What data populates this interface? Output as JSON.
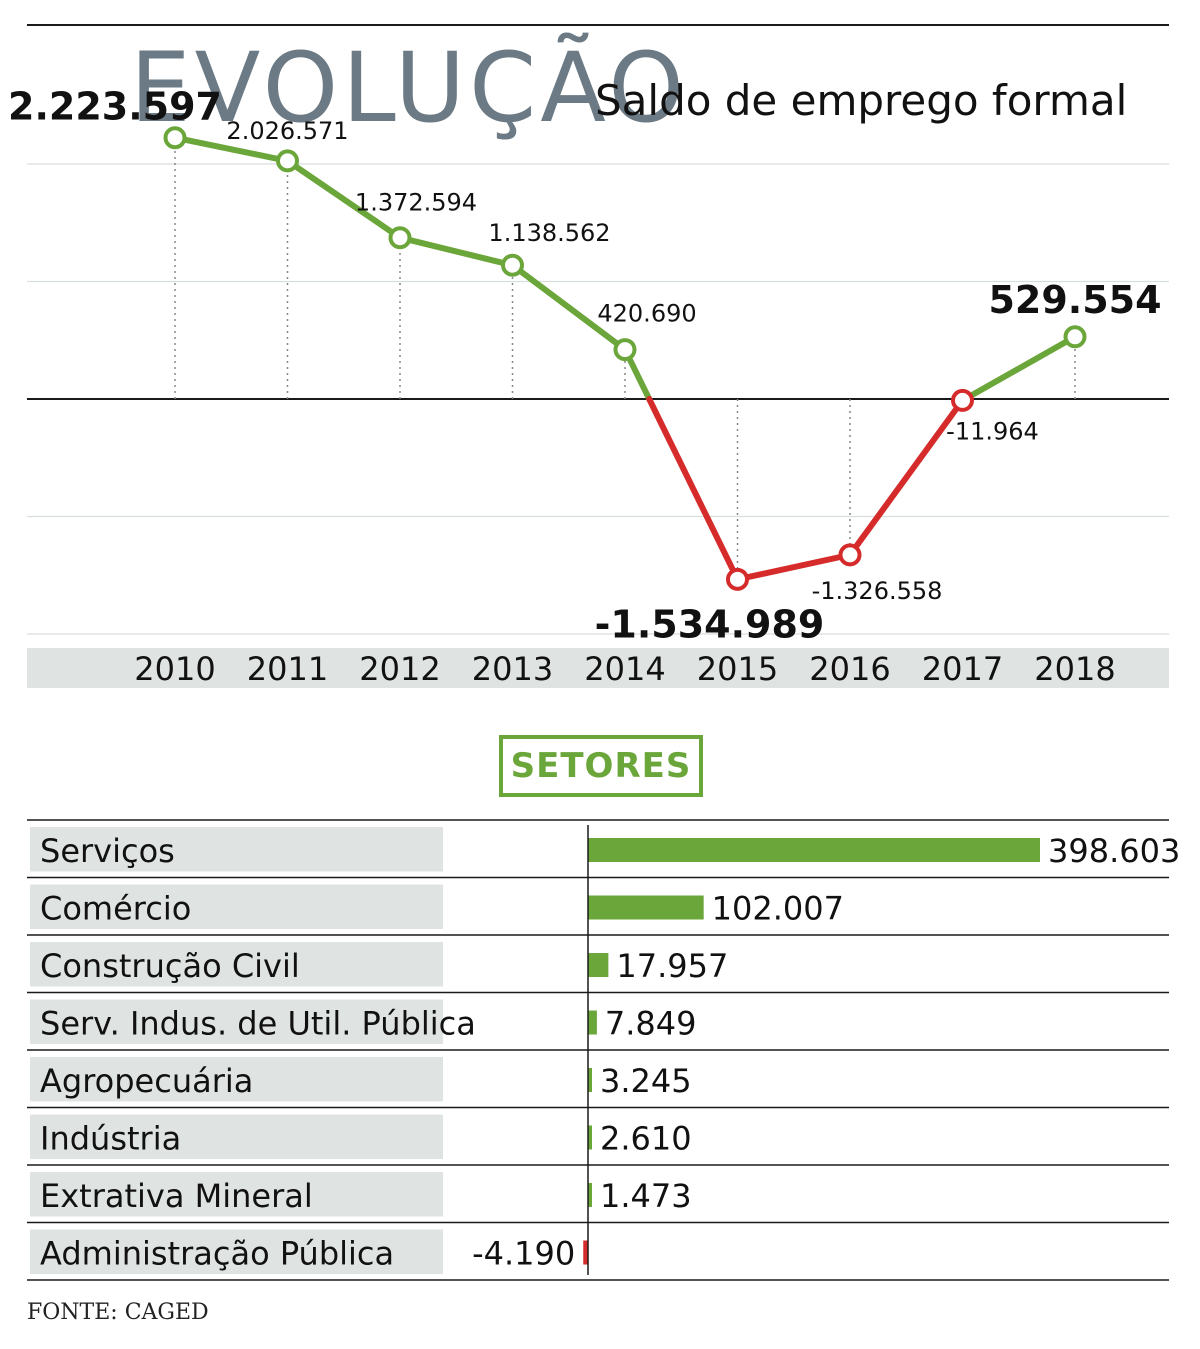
{
  "header": {
    "title": "EVOLUÇÃO",
    "subtitle": "Saldo de emprego formal"
  },
  "colors": {
    "positive": "#6aa63a",
    "negative": "#d62b2b",
    "title": "#6b7a84",
    "axis_band": "#dfe4e3",
    "label_band": "#dfe4e3",
    "grid": "#d9dedd"
  },
  "chart_data": [
    {
      "type": "line",
      "title": "",
      "x": [
        "2010",
        "2011",
        "2012",
        "2013",
        "2014",
        "2015",
        "2016",
        "2017",
        "2018"
      ],
      "series": [
        {
          "values": [
            2223597,
            2026571,
            1372594,
            1138562,
            420690,
            -1534989,
            -1326558,
            -11964,
            529554
          ],
          "labels": [
            "2.223.597",
            "2.026.571",
            "1.372.594",
            "1.138.562",
            "420.690",
            "-1.534.989",
            "-1.326.558",
            "-11.964",
            "529.554"
          ]
        }
      ],
      "highlighted": [
        "2010",
        "2015",
        "2018"
      ],
      "ylim": [
        -3000000,
        3000000
      ],
      "grid": true,
      "zero_line": true
    },
    {
      "type": "bar",
      "orientation": "horizontal",
      "title": "SETORES",
      "categories": [
        "Serviços",
        "Comércio",
        "Construção Civil",
        "Serv. Indus. de Util. Pública",
        "Agropecuária",
        "Indústria",
        "Extrativa Mineral",
        "Administração Pública"
      ],
      "values": [
        398603,
        102007,
        17957,
        7849,
        3245,
        2610,
        1473,
        -4190
      ],
      "labels": [
        "398.603",
        "102.007",
        "17.957",
        "7.849",
        "3.245",
        "2.610",
        "1.473",
        "-4.190"
      ]
    }
  ],
  "footer": {
    "source": "FONTE: CAGED"
  }
}
